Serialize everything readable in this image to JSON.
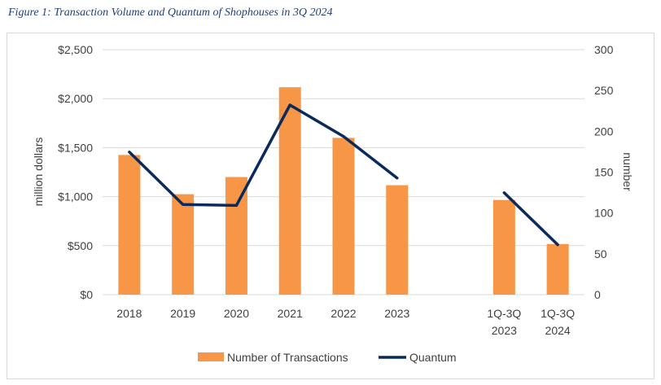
{
  "caption": "Figure 1: Transaction Volume and Quantum of Shophouses in 3Q 2024",
  "chart_data": {
    "type": "bar",
    "categories": [
      [
        "2018"
      ],
      [
        "2019"
      ],
      [
        "2020"
      ],
      [
        "2021"
      ],
      [
        "2022"
      ],
      [
        "2023"
      ],
      [],
      [
        "1Q-3Q",
        "2023"
      ],
      [
        "1Q-3Q",
        "2024"
      ]
    ],
    "series": [
      {
        "name": "Number of Transactions",
        "type": "bar",
        "axis": "right",
        "color": "#f79646",
        "values": [
          171,
          123,
          144,
          254,
          192,
          134,
          null,
          116,
          62
        ]
      },
      {
        "name": "Quantum",
        "type": "line",
        "axis": "left",
        "color": "#0b2a5c",
        "values": [
          1455,
          920,
          910,
          1935,
          1615,
          1190,
          null,
          1040,
          510
        ]
      }
    ],
    "y_left": {
      "label": "million dollars",
      "range": [
        0,
        2500
      ],
      "ticks": [
        0,
        500,
        1000,
        1500,
        2000,
        2500
      ],
      "tick_labels": [
        "$0",
        "$500",
        "$1,000",
        "$1,500",
        "$2,000",
        "$2,500"
      ]
    },
    "y_right": {
      "label": "number",
      "range": [
        0,
        300
      ],
      "ticks": [
        0,
        50,
        100,
        150,
        200,
        250,
        300
      ],
      "tick_labels": [
        "0",
        "50",
        "100",
        "150",
        "200",
        "250",
        "300"
      ]
    },
    "legend_position": "bottom",
    "grid": true
  }
}
